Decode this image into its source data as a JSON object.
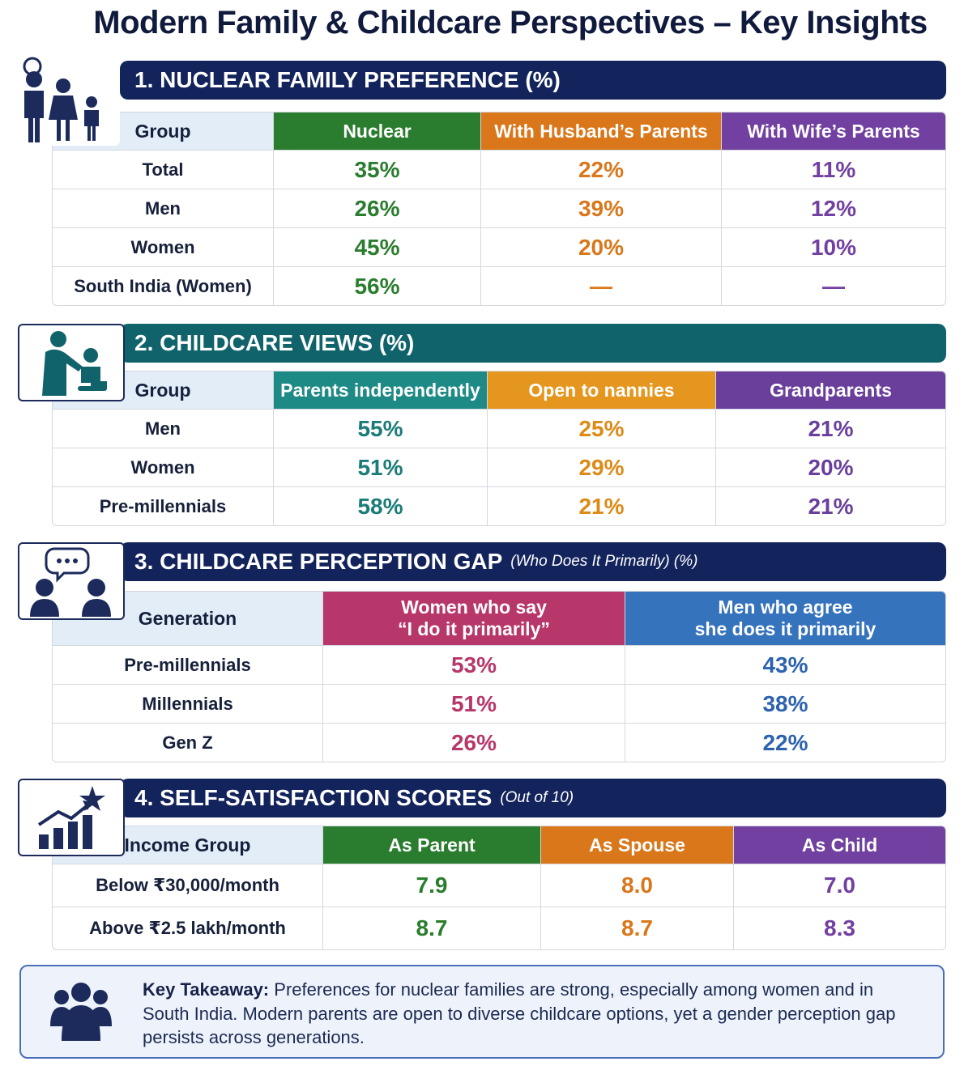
{
  "title": "Modern Family & Childcare Perspectives – Key Insights",
  "colors": {
    "navy": "#13235c",
    "teal": "#11636b",
    "green": "#2a7d2e",
    "orange": "#d9771a",
    "purple": "#7240a0",
    "teal_head": "#1e8a86",
    "amber": "#e5961e",
    "crimson": "#b8376a",
    "blue": "#3673bd"
  },
  "sections": [
    {
      "number": "1.",
      "title": "NUCLEAR FAMILY PREFERENCE (%)",
      "subtitle": "",
      "icon": "family-icon",
      "headers": [
        "Group",
        "Nuclear",
        "With Husband’s Parents",
        "With Wife’s Parents"
      ],
      "rows": [
        {
          "label": "Total",
          "values": [
            "35%",
            "22%",
            "11%"
          ]
        },
        {
          "label": "Men",
          "values": [
            "26%",
            "39%",
            "12%"
          ]
        },
        {
          "label": "Women",
          "values": [
            "45%",
            "20%",
            "10%"
          ]
        },
        {
          "label": "South India (Women)",
          "values": [
            "56%",
            "—",
            "—"
          ]
        }
      ]
    },
    {
      "number": "2.",
      "title": "CHILDCARE VIEWS (%)",
      "subtitle": "",
      "icon": "caregiver-child-icon",
      "headers": [
        "Group",
        "Parents independently",
        "Open to nannies",
        "Grandparents"
      ],
      "rows": [
        {
          "label": "Men",
          "values": [
            "55%",
            "25%",
            "21%"
          ]
        },
        {
          "label": "Women",
          "values": [
            "51%",
            "29%",
            "20%"
          ]
        },
        {
          "label": "Pre-millennials",
          "values": [
            "58%",
            "21%",
            "21%"
          ]
        }
      ]
    },
    {
      "number": "3.",
      "title": "CHILDCARE PERCEPTION GAP",
      "subtitle": "(Who Does It Primarily) (%)",
      "icon": "conversation-icon",
      "headers": [
        "Generation",
        "Women who say\n“I do it primarily”",
        "Men who agree\nshe does it primarily"
      ],
      "rows": [
        {
          "label": "Pre-millennials",
          "values": [
            "53%",
            "43%"
          ]
        },
        {
          "label": "Millennials",
          "values": [
            "51%",
            "38%"
          ]
        },
        {
          "label": "Gen Z",
          "values": [
            "26%",
            "22%"
          ]
        }
      ]
    },
    {
      "number": "4.",
      "title": "SELF-SATISFACTION SCORES",
      "subtitle": "(Out of 10)",
      "icon": "growth-chart-star-icon",
      "headers": [
        "Income Group",
        "As Parent",
        "As Spouse",
        "As Child"
      ],
      "rows": [
        {
          "label": "Below ₹30,000/month",
          "values": [
            "7.9",
            "8.0",
            "7.0"
          ]
        },
        {
          "label": "Above ₹2.5 lakh/month",
          "values": [
            "8.7",
            "8.7",
            "8.3"
          ]
        }
      ]
    }
  ],
  "takeaway": {
    "icon": "group-people-icon",
    "label": "Key Takeaway:",
    "text": "Preferences for nuclear families are strong, especially among women and in South India. Modern parents are open to diverse childcare options, yet a gender perception gap persists across generations."
  }
}
